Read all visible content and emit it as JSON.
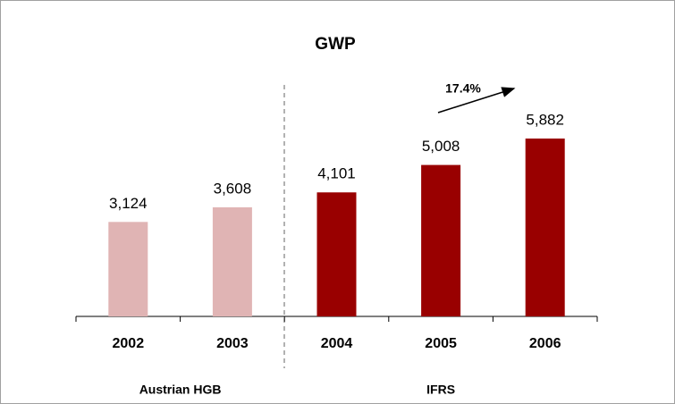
{
  "chart_data": {
    "type": "bar",
    "title": "GWP",
    "categories": [
      "2002",
      "2003",
      "2004",
      "2005",
      "2006"
    ],
    "values": [
      3124,
      3608,
      4101,
      5008,
      5882
    ],
    "value_labels": [
      "3,124",
      "3,608",
      "4,101",
      "5,008",
      "5,882"
    ],
    "colors": [
      "#e0b4b4",
      "#e0b4b4",
      "#990000",
      "#990000",
      "#990000"
    ],
    "group_labels": [
      "Austrian HGB",
      "IFRS"
    ],
    "annotation": "17.4%"
  }
}
